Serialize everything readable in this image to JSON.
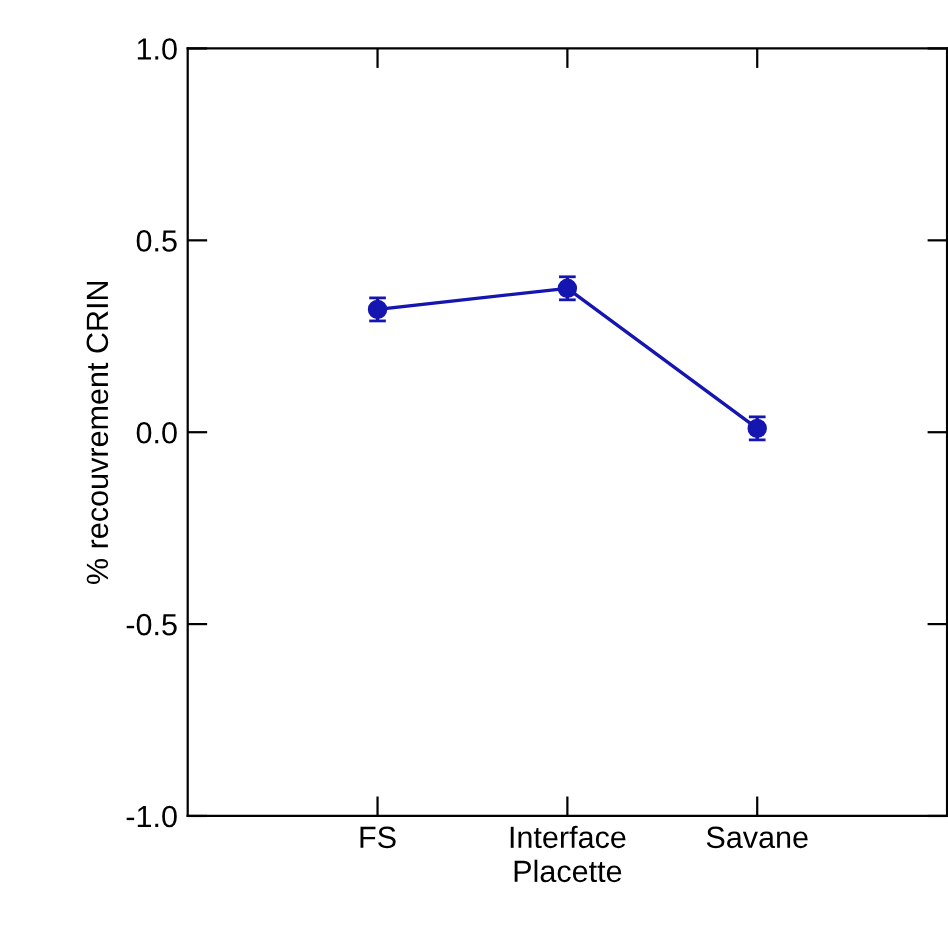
{
  "chart_data": {
    "type": "line",
    "xlabel": "Placette",
    "ylabel": "% recouvrement CRIN",
    "categories": [
      "FS",
      "Interface",
      "Savane"
    ],
    "series": [
      {
        "color": "#1515b0",
        "values": [
          0.32,
          0.375,
          0.01
        ],
        "errors": [
          0.03,
          0.03,
          0.03
        ]
      }
    ],
    "ylim": [
      -1.0,
      1.0
    ],
    "yticks": [
      {
        "value": -1.0,
        "label": "-1.0"
      },
      {
        "value": -0.5,
        "label": "-0.5"
      },
      {
        "value": 0.0,
        "label": "0.0"
      },
      {
        "value": 0.5,
        "label": "0.5"
      },
      {
        "value": 1.0,
        "label": "1.0"
      }
    ],
    "grid": false,
    "legend": false,
    "marker": "circle",
    "line_style": "solid"
  }
}
